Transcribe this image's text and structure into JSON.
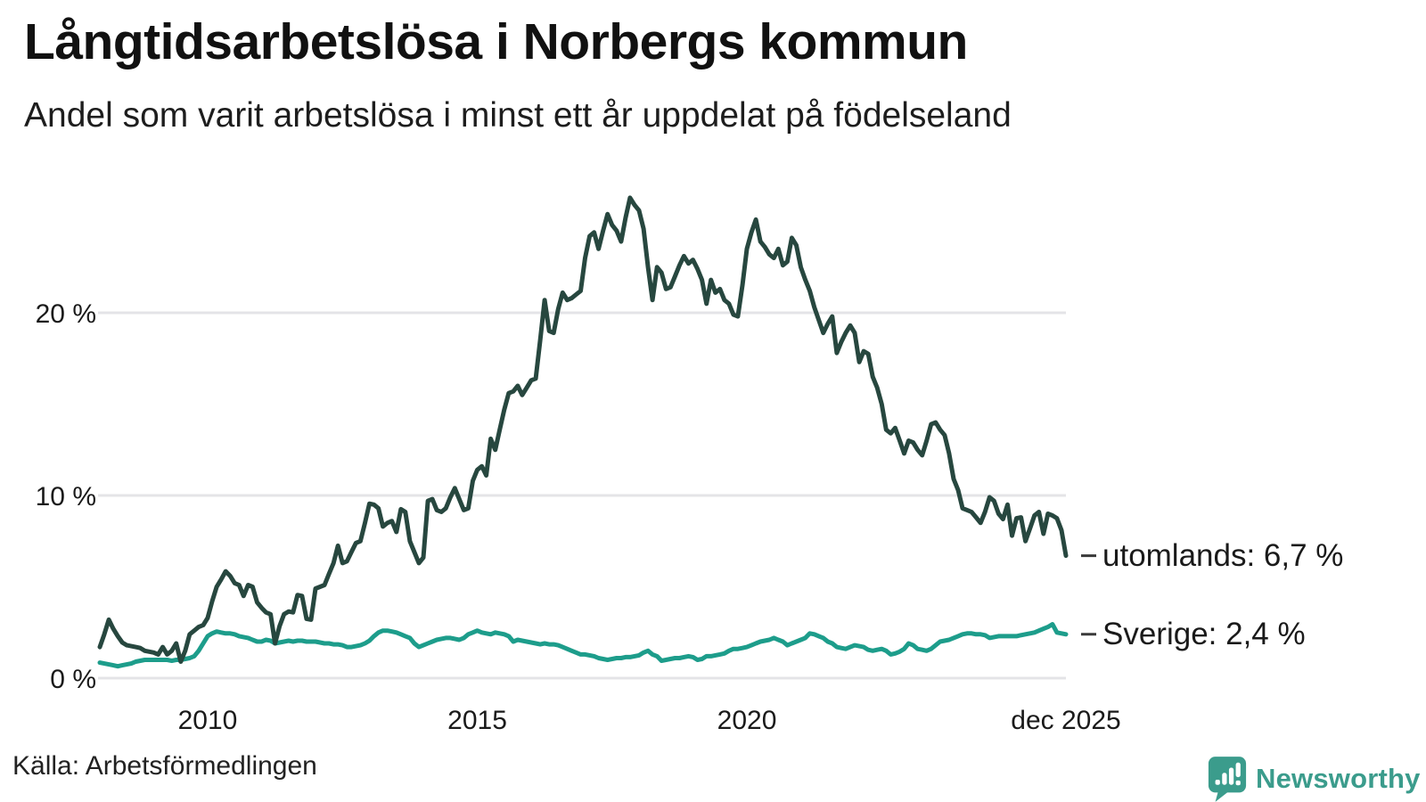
{
  "header": {
    "title": "Långtidsarbetslösa i Norbergs kommun",
    "subtitle": "Andel som varit arbetslösa i minst ett år uppdelat på födelseland"
  },
  "footer": {
    "source": "Källa: Arbetsförmedlingen",
    "brand": "Newsworthy"
  },
  "colors": {
    "utomlands_line": "#27473f",
    "sverige_line": "#1d9d8b",
    "grid": "#e4e4e7",
    "tick_text": "#1a1a1a",
    "connector": "#3a3a3a",
    "brand_teal": "#3b9c8c"
  },
  "chart_data": {
    "type": "line",
    "title": "Långtidsarbetslösa i Norbergs kommun",
    "subtitle": "Andel som varit arbetslösa i minst ett år uppdelat på födelseland",
    "frequency": "monthly",
    "x_start": "2008-01",
    "x_end": "2025-12",
    "xlabel": "",
    "ylabel": "",
    "ylim": [
      0,
      27
    ],
    "grid": "horizontal-only",
    "legend": "end-of-line-labels",
    "y_ticks": [
      {
        "label": "0 %",
        "value": 0
      },
      {
        "label": "10 %",
        "value": 10
      },
      {
        "label": "20 %",
        "value": 20
      }
    ],
    "x_ticks": [
      {
        "label": "2010",
        "month_index": 24
      },
      {
        "label": "2015",
        "month_index": 84
      },
      {
        "label": "2020",
        "month_index": 144
      },
      {
        "label": "dec 2025",
        "month_index": 215
      }
    ],
    "series": [
      {
        "key": "utomlands",
        "name": "utomlands",
        "end_label": "utomlands: 6,7 %",
        "end_value_label": "6,7 %",
        "color": "#27473f",
        "values": [
          1.7,
          2.4,
          3.2,
          2.7,
          2.3,
          1.95,
          1.8,
          1.75,
          1.7,
          1.65,
          1.5,
          1.45,
          1.4,
          1.3,
          1.7,
          1.3,
          1.5,
          1.9,
          0.9,
          1.5,
          2.4,
          2.6,
          2.8,
          2.9,
          3.3,
          4.2,
          5.0,
          5.4,
          5.85,
          5.6,
          5.2,
          5.1,
          4.5,
          5.1,
          5.0,
          4.15,
          3.85,
          3.6,
          3.5,
          1.9,
          2.85,
          3.5,
          3.65,
          3.6,
          4.55,
          4.5,
          3.25,
          3.2,
          4.9,
          5.0,
          5.1,
          5.7,
          6.3,
          7.25,
          6.3,
          6.4,
          6.9,
          7.4,
          7.5,
          8.5,
          9.55,
          9.5,
          9.3,
          8.3,
          8.5,
          8.6,
          8.0,
          9.25,
          9.1,
          7.5,
          6.9,
          6.3,
          6.6,
          9.7,
          9.8,
          9.2,
          9.1,
          9.3,
          9.9,
          10.4,
          9.8,
          9.2,
          9.3,
          10.8,
          11.4,
          11.6,
          11.1,
          13.1,
          12.5,
          13.6,
          14.7,
          15.6,
          15.7,
          16.0,
          15.5,
          15.9,
          16.3,
          16.4,
          18.5,
          20.7,
          19.0,
          18.9,
          20.2,
          21.1,
          20.7,
          20.8,
          21.0,
          21.2,
          23.0,
          24.2,
          24.4,
          23.5,
          24.5,
          25.4,
          24.8,
          24.5,
          23.9,
          25.2,
          26.3,
          25.9,
          25.6,
          24.6,
          22.5,
          20.7,
          22.5,
          22.2,
          21.3,
          21.4,
          22.0,
          22.6,
          23.1,
          22.7,
          22.9,
          22.4,
          21.8,
          20.5,
          21.8,
          21.1,
          21.3,
          20.7,
          20.5,
          19.9,
          19.8,
          21.5,
          23.5,
          24.4,
          25.1,
          23.9,
          23.6,
          23.2,
          23.0,
          23.5,
          22.6,
          22.8,
          24.1,
          23.7,
          22.5,
          21.8,
          21.2,
          20.3,
          19.6,
          18.9,
          19.4,
          19.8,
          17.8,
          18.4,
          18.9,
          19.3,
          18.9,
          17.3,
          17.9,
          17.75,
          16.5,
          15.9,
          15.0,
          13.6,
          13.4,
          13.7,
          13.0,
          12.3,
          13.0,
          12.9,
          12.5,
          12.2,
          13.0,
          13.9,
          14.0,
          13.6,
          13.3,
          12.3,
          10.9,
          10.3,
          9.3,
          9.2,
          9.1,
          8.8,
          8.5,
          9.1,
          9.9,
          9.7,
          9.0,
          8.7,
          9.5,
          7.8,
          8.75,
          8.8,
          7.5,
          8.2,
          8.9,
          9.1,
          7.9,
          9.0,
          8.9,
          8.75,
          8.1,
          6.7
        ]
      },
      {
        "key": "sverige",
        "name": "Sverige",
        "end_label": "Sverige: 2,4 %",
        "end_value_label": "2,4 %",
        "color": "#1d9d8b",
        "values": [
          0.85,
          0.8,
          0.75,
          0.7,
          0.65,
          0.7,
          0.75,
          0.8,
          0.9,
          0.95,
          1.0,
          1.0,
          1.0,
          1.0,
          1.0,
          1.0,
          0.95,
          1.0,
          1.0,
          1.05,
          1.1,
          1.2,
          1.5,
          1.9,
          2.3,
          2.45,
          2.55,
          2.5,
          2.45,
          2.45,
          2.4,
          2.3,
          2.25,
          2.2,
          2.1,
          2.0,
          2.0,
          2.1,
          2.05,
          1.9,
          1.95,
          2.0,
          2.05,
          2.0,
          2.05,
          2.05,
          2.0,
          2.0,
          2.0,
          1.95,
          1.9,
          1.9,
          1.85,
          1.85,
          1.8,
          1.7,
          1.7,
          1.75,
          1.8,
          1.9,
          2.05,
          2.3,
          2.5,
          2.6,
          2.6,
          2.55,
          2.5,
          2.4,
          2.3,
          2.2,
          1.9,
          1.7,
          1.8,
          1.9,
          2.0,
          2.1,
          2.15,
          2.2,
          2.2,
          2.15,
          2.1,
          2.2,
          2.4,
          2.5,
          2.6,
          2.5,
          2.45,
          2.4,
          2.5,
          2.45,
          2.4,
          2.3,
          2.0,
          2.1,
          2.05,
          2.0,
          1.95,
          1.9,
          1.85,
          1.9,
          1.85,
          1.85,
          1.8,
          1.7,
          1.6,
          1.5,
          1.4,
          1.3,
          1.3,
          1.25,
          1.2,
          1.1,
          1.05,
          1.0,
          1.05,
          1.1,
          1.1,
          1.15,
          1.15,
          1.2,
          1.25,
          1.4,
          1.5,
          1.3,
          1.2,
          0.95,
          1.0,
          1.05,
          1.1,
          1.1,
          1.15,
          1.2,
          1.15,
          1.0,
          1.05,
          1.2,
          1.2,
          1.25,
          1.3,
          1.35,
          1.5,
          1.6,
          1.6,
          1.65,
          1.7,
          1.8,
          1.9,
          2.0,
          2.05,
          2.1,
          2.2,
          2.1,
          2.0,
          1.8,
          1.9,
          2.0,
          2.1,
          2.2,
          2.45,
          2.4,
          2.3,
          2.2,
          2.0,
          1.9,
          1.7,
          1.65,
          1.6,
          1.7,
          1.8,
          1.75,
          1.7,
          1.55,
          1.5,
          1.55,
          1.6,
          1.5,
          1.3,
          1.35,
          1.45,
          1.6,
          1.9,
          1.8,
          1.6,
          1.55,
          1.5,
          1.6,
          1.8,
          2.0,
          2.05,
          2.1,
          2.2,
          2.3,
          2.4,
          2.45,
          2.45,
          2.4,
          2.4,
          2.35,
          2.2,
          2.25,
          2.3,
          2.3,
          2.3,
          2.3,
          2.3,
          2.35,
          2.4,
          2.45,
          2.5,
          2.6,
          2.7,
          2.8,
          2.95,
          2.5,
          2.45,
          2.4
        ]
      }
    ]
  }
}
